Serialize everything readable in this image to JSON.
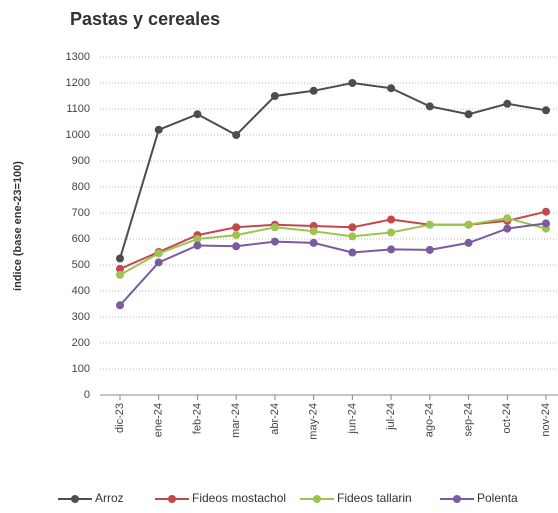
{
  "chart_data": {
    "type": "line",
    "title": "Pastas y cereales",
    "y_label": "índice (base ene-23=100)",
    "categories": [
      "dic-23",
      "ene-24",
      "feb-24",
      "mar-24",
      "abr-24",
      "may-24",
      "jun-24",
      "jul-24",
      "ago-24",
      "sep-24",
      "oct-24",
      "nov-24"
    ],
    "series": [
      {
        "name": "Arroz",
        "color": "#4d4d4d",
        "values": [
          525,
          1020,
          1080,
          1000,
          1150,
          1170,
          1200,
          1180,
          1110,
          1080,
          1120,
          1095
        ]
      },
      {
        "name": "Fideos mostachol",
        "color": "#c3474c",
        "values": [
          485,
          550,
          615,
          645,
          655,
          650,
          645,
          675,
          655,
          655,
          670,
          705
        ]
      },
      {
        "name": "Fideos tallarin",
        "color": "#9cc44f",
        "values": [
          462,
          545,
          600,
          615,
          645,
          630,
          610,
          625,
          655,
          655,
          680,
          640
        ]
      },
      {
        "name": "Polenta",
        "color": "#7b5a9f",
        "values": [
          345,
          510,
          575,
          572,
          590,
          585,
          548,
          560,
          558,
          585,
          640,
          660
        ]
      }
    ],
    "ylim": [
      0,
      1300
    ],
    "yticks": [
      0,
      100,
      200,
      300,
      400,
      500,
      600,
      700,
      800,
      900,
      1000,
      1100,
      1200,
      1300
    ],
    "grid": true
  }
}
